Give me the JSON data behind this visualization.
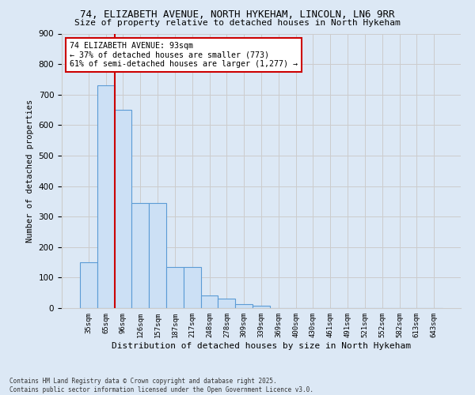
{
  "title_line1": "74, ELIZABETH AVENUE, NORTH HYKEHAM, LINCOLN, LN6 9RR",
  "title_line2": "Size of property relative to detached houses in North Hykeham",
  "xlabel": "Distribution of detached houses by size in North Hykeham",
  "ylabel": "Number of detached properties",
  "categories": [
    "35sqm",
    "65sqm",
    "96sqm",
    "126sqm",
    "157sqm",
    "187sqm",
    "217sqm",
    "248sqm",
    "278sqm",
    "309sqm",
    "339sqm",
    "369sqm",
    "400sqm",
    "430sqm",
    "461sqm",
    "491sqm",
    "521sqm",
    "552sqm",
    "582sqm",
    "613sqm",
    "643sqm"
  ],
  "values": [
    150,
    730,
    650,
    345,
    345,
    135,
    135,
    42,
    30,
    12,
    8,
    0,
    0,
    0,
    0,
    0,
    0,
    0,
    0,
    0,
    0
  ],
  "bar_color": "#cce0f5",
  "bar_edge_color": "#5b9bd5",
  "red_line_index": 2,
  "annotation_title": "74 ELIZABETH AVENUE: 93sqm",
  "annotation_line2": "← 37% of detached houses are smaller (773)",
  "annotation_line3": "61% of semi-detached houses are larger (1,277) →",
  "annotation_box_color": "#ffffff",
  "annotation_box_edge": "#cc0000",
  "red_line_color": "#cc0000",
  "ylim": [
    0,
    900
  ],
  "yticks": [
    0,
    100,
    200,
    300,
    400,
    500,
    600,
    700,
    800,
    900
  ],
  "grid_color": "#cccccc",
  "background_color": "#dce8f5",
  "footer_line1": "Contains HM Land Registry data © Crown copyright and database right 2025.",
  "footer_line2": "Contains public sector information licensed under the Open Government Licence v3.0."
}
